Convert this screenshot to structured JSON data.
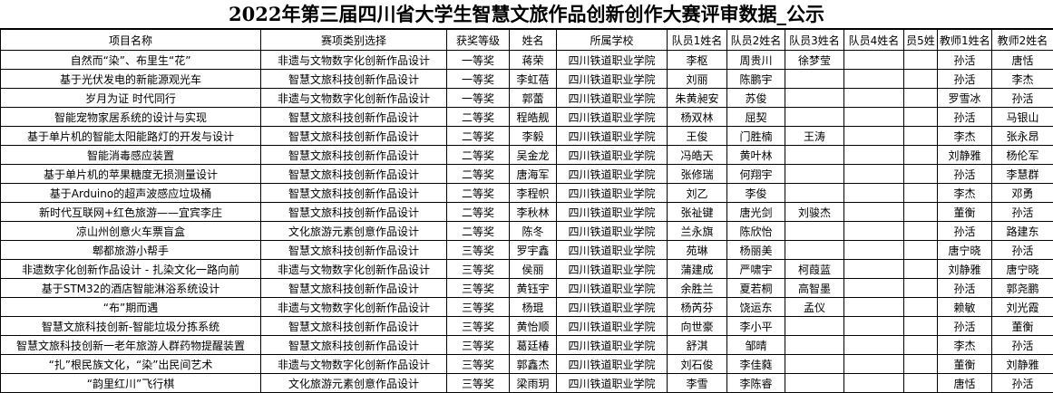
{
  "title": "2022年第三届四川省大学生智慧文旅作品创新创作大赛评审数据_公示",
  "headers": [
    "项目名称",
    "赛项类别选择",
    "获奖等级",
    "姓名",
    "所属学校",
    "队员1姓名",
    "队员2姓名",
    "队员3姓名",
    "队员4姓名",
    "员5姓",
    "教师1姓名",
    "教师2姓名"
  ],
  "rows": [
    [
      "自然而“染”、布里生“花”",
      "非遗与文物数字化创新作品设计",
      "一等奖",
      "蒋荣",
      "四川铁道职业学院",
      "李枢",
      "周贵川",
      "徐梦莹",
      "",
      "",
      "孙活",
      "唐恬"
    ],
    [
      "基于光伏发电的新能源观光车",
      "智慧文旅科技创新作品设计",
      "一等奖",
      "李虹蓓",
      "四川铁道职业学院",
      "刘丽",
      "陈鹏宇",
      "",
      "",
      "",
      "孙活",
      "李杰"
    ],
    [
      "岁月为证 时代同行",
      "非遗与文物数字化创新作品设计",
      "一等奖",
      "郭蕾",
      "四川铁道职业学院",
      "朱黄昶安",
      "苏俊",
      "",
      "",
      "",
      "罗雪冰",
      "孙活"
    ],
    [
      "智能宠物家居系统的设计与实现",
      "智慧文旅科技创新作品设计",
      "二等奖",
      "程皓舰",
      "四川铁道职业学院",
      "杨双林",
      "屈契",
      "",
      "",
      "",
      "孙活",
      "马银山"
    ],
    [
      "基于单片机的智能太阳能路灯的开发与设计",
      "智慧文旅科技创新作品设计",
      "二等奖",
      "李毅",
      "四川铁道职业学院",
      "王俊",
      "门胜楠",
      "王涛",
      "",
      "",
      "李杰",
      "张永昂"
    ],
    [
      "智能消毒感应装置",
      "智慧文旅科技创新作品设计",
      "二等奖",
      "吴金龙",
      "四川铁道职业学院",
      "冯皓天",
      "黄叶林",
      "",
      "",
      "",
      "刘静雅",
      "杨伦军"
    ],
    [
      "基于单片机的苹果糖度无损测量设计",
      "智慧文旅科技创新作品设计",
      "二等奖",
      "唐海军",
      "四川铁道职业学院",
      "张修瑞",
      "何翔宇",
      "",
      "",
      "",
      "孙活",
      "李慧群"
    ],
    [
      "基于Arduino的超声波感应垃圾桶",
      "智慧文旅科技创新作品设计",
      "二等奖",
      "李程帜",
      "四川铁道职业学院",
      "刘乙",
      "李俊",
      "",
      "",
      "",
      "李杰",
      "邓勇"
    ],
    [
      "新时代互联网+红色旅游——宜宾李庄",
      "智慧文旅科技创新作品设计",
      "二等奖",
      "李秋林",
      "四川铁道职业学院",
      "张祉键",
      "唐光剑",
      "刘骏杰",
      "",
      "",
      "董衡",
      "孙活"
    ],
    [
      "凉山州创意火车票盲盒",
      "文化旅游元素创意作品设计",
      "二等奖",
      "陈冬",
      "四川铁道职业学院",
      "兰永旗",
      "陈欣怡",
      "",
      "",
      "",
      "孙活",
      "路建东"
    ],
    [
      "郫都旅游小帮手",
      "智慧文旅科技创新作品设计",
      "三等奖",
      "罗宇鑫",
      "四川铁道职业学院",
      "苑琳",
      "杨丽美",
      "",
      "",
      "",
      "唐宁晓",
      "孙活"
    ],
    [
      "非遗数字化创新作品设计 - 扎染文化一路向前",
      "非遗与文物数字化创新作品设计",
      "三等奖",
      "侯丽",
      "四川铁道职业学院",
      "蒲建成",
      "严啸宇",
      "柯葭蓝",
      "",
      "",
      "刘静雅",
      "唐宁晓"
    ],
    [
      "基于STM32的酒店智能淋浴系统设计",
      "智慧文旅科技创新作品设计",
      "三等奖",
      "黄钰宇",
      "四川铁道职业学院",
      "余胜兰",
      "夏若桐",
      "高智墨",
      "",
      "",
      "孙活",
      "郭尧鹏"
    ],
    [
      "“布”期而遇",
      "非遗与文物数字化创新作品设计",
      "三等奖",
      "杨琨",
      "四川铁道职业学院",
      "杨芮芬",
      "饶运东",
      "孟仪",
      "",
      "",
      "赖敏",
      "刘光霞"
    ],
    [
      "智慧文旅科技创新-智能垃圾分拣系统",
      "智慧文旅科技创新作品设计",
      "三等奖",
      "黄怡顺",
      "四川铁道职业学院",
      "向世豪",
      "李小平",
      "",
      "",
      "",
      "孙活",
      "董衡"
    ],
    [
      "智慧文旅科技创新一老年旅游人群药物提醒装置",
      "智慧文旅科技创新作品设计",
      "三等奖",
      "葛廷椿",
      "四川铁道职业学院",
      "舒淇",
      "邹晴",
      "",
      "",
      "",
      "李杰",
      "孙活"
    ],
    [
      "“扎”根民族文化，“染”出民间艺术",
      "非遗与文物数字化创新作品设计",
      "三等奖",
      "郭鑫杰",
      "四川铁道职业学院",
      "刘石俊",
      "李佳蕤",
      "",
      "",
      "",
      "董衡",
      "刘静雅"
    ],
    [
      "“韵里红川”飞行棋",
      "文化旅游元素创意作品设计",
      "三等奖",
      "梁雨玥",
      "四川铁道职业学院",
      "李雪",
      "李陈睿",
      "",
      "",
      "",
      "唐恬",
      "孙活"
    ]
  ]
}
